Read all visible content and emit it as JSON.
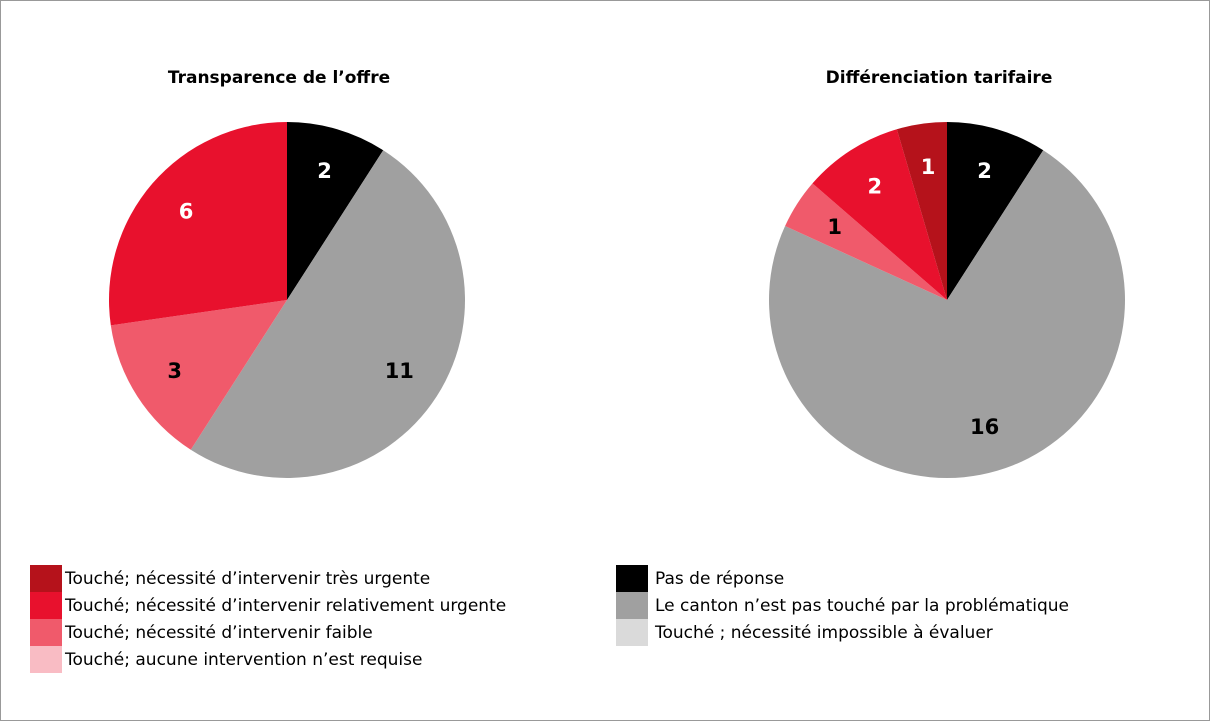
{
  "legend": [
    {
      "name": "Touché; nécessité d’intervenir très urgente",
      "color": "#b5121b",
      "label_color": "#ffffff"
    },
    {
      "name": "Touché; nécessité d’intervenir relativement urgente",
      "color": "#e8112d",
      "label_color": "#ffffff"
    },
    {
      "name": "Touché; nécessité d’intervenir faible",
      "color": "#f05a6b",
      "label_color": "#000000"
    },
    {
      "name": "Touché; aucune intervention n’est requise",
      "color": "#f9bcc4",
      "label_color": "#000000"
    },
    {
      "name": "Pas de réponse",
      "color": "#000000",
      "label_color": "#ffffff"
    },
    {
      "name": "Le canton n’est pas touché par la problématique",
      "color": "#a0a0a0",
      "label_color": "#000000"
    },
    {
      "name": "Touché ; nécessité impossible à évaluer",
      "color": "#dadada",
      "label_color": "#000000"
    }
  ],
  "chart_data": [
    {
      "type": "pie",
      "title": "Transparence de l’offre",
      "values": [
        0,
        6,
        3,
        0,
        2,
        11,
        0
      ]
    },
    {
      "type": "pie",
      "title": "Différenciation tarifaire",
      "values": [
        1,
        2,
        1,
        0,
        2,
        16,
        0
      ]
    }
  ]
}
